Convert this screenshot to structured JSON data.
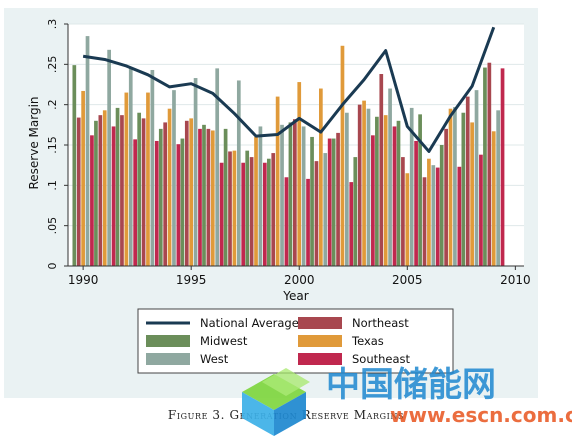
{
  "caption": "Figure 3. Generation Reserve Margins",
  "watermark_text": "中国储能网",
  "watermark_url": "www.escn.com.cn",
  "colors": {
    "plot_bg": "#eaf2f3",
    "frame_bg": "#ffffff",
    "National Average": "#1a3a52",
    "Midwest": "#6b8e5a",
    "West": "#8fa8a0",
    "Northeast": "#a8474f",
    "Texas": "#e09a3a",
    "Southeast": "#c0284e"
  },
  "chart_data": {
    "type": "bar",
    "title": "",
    "xlabel": "Year",
    "ylabel": "Reserve Margin",
    "xlim": [
      1989.3,
      2010.4
    ],
    "ylim": [
      0,
      0.3
    ],
    "xticks": [
      1990,
      1995,
      2000,
      2005,
      2010
    ],
    "yticks": [
      0,
      0.05,
      0.1,
      0.15,
      0.2,
      0.25,
      0.3
    ],
    "ytick_labels": [
      "0",
      ".05",
      ".1",
      ".15",
      ".2",
      ".25",
      ".3"
    ],
    "grid": true,
    "legend_position": "bottom",
    "categories": [
      1990,
      1991,
      1992,
      1993,
      1994,
      1995,
      1996,
      1997,
      1998,
      1999,
      2000,
      2001,
      2002,
      2003,
      2004,
      2005,
      2006,
      2007,
      2008,
      2009
    ],
    "series": [
      {
        "name": "Midwest",
        "type": "bar",
        "values": [
          0.249,
          0.18,
          0.196,
          0.19,
          0.17,
          0.158,
          0.175,
          0.17,
          0.143,
          0.133,
          0.178,
          0.16,
          0.158,
          0.135,
          0.185,
          0.18,
          0.188,
          0.15,
          0.19,
          0.246
        ]
      },
      {
        "name": "Northeast",
        "type": "bar",
        "values": [
          0.184,
          0.187,
          0.187,
          0.183,
          0.178,
          0.18,
          0.17,
          0.142,
          0.135,
          0.14,
          0.182,
          0.13,
          0.165,
          0.2,
          0.238,
          0.135,
          0.11,
          0.17,
          0.21,
          0.252
        ]
      },
      {
        "name": "Texas",
        "type": "bar",
        "values": [
          0.217,
          0.193,
          0.215,
          0.215,
          0.195,
          0.183,
          0.168,
          0.143,
          0.16,
          0.21,
          0.228,
          0.22,
          0.273,
          0.205,
          0.187,
          0.115,
          0.133,
          0.195,
          0.178,
          0.167
        ]
      },
      {
        "name": "West",
        "type": "bar",
        "values": [
          0.285,
          0.268,
          0.245,
          0.243,
          0.218,
          0.233,
          0.245,
          0.23,
          0.173,
          0.175,
          0.173,
          0.14,
          0.19,
          0.195,
          0.22,
          0.196,
          0.125,
          0.197,
          0.218,
          0.193
        ]
      },
      {
        "name": "Southeast",
        "type": "bar",
        "values": [
          0.162,
          0.173,
          0.157,
          0.155,
          0.151,
          0.17,
          0.128,
          0.128,
          0.128,
          0.11,
          0.108,
          0.158,
          0.104,
          0.162,
          0.173,
          0.155,
          0.122,
          0.123,
          0.138,
          0.245
        ]
      },
      {
        "name": "National Average",
        "type": "line",
        "values": [
          0.26,
          0.256,
          0.248,
          0.237,
          0.222,
          0.226,
          0.214,
          0.189,
          0.161,
          0.163,
          0.183,
          0.166,
          0.2,
          0.231,
          0.267,
          0.173,
          0.142,
          0.186,
          0.223,
          0.296
        ]
      }
    ],
    "legend": [
      "National Average",
      "Northeast",
      "Midwest",
      "Texas",
      "West",
      "Southeast"
    ]
  }
}
